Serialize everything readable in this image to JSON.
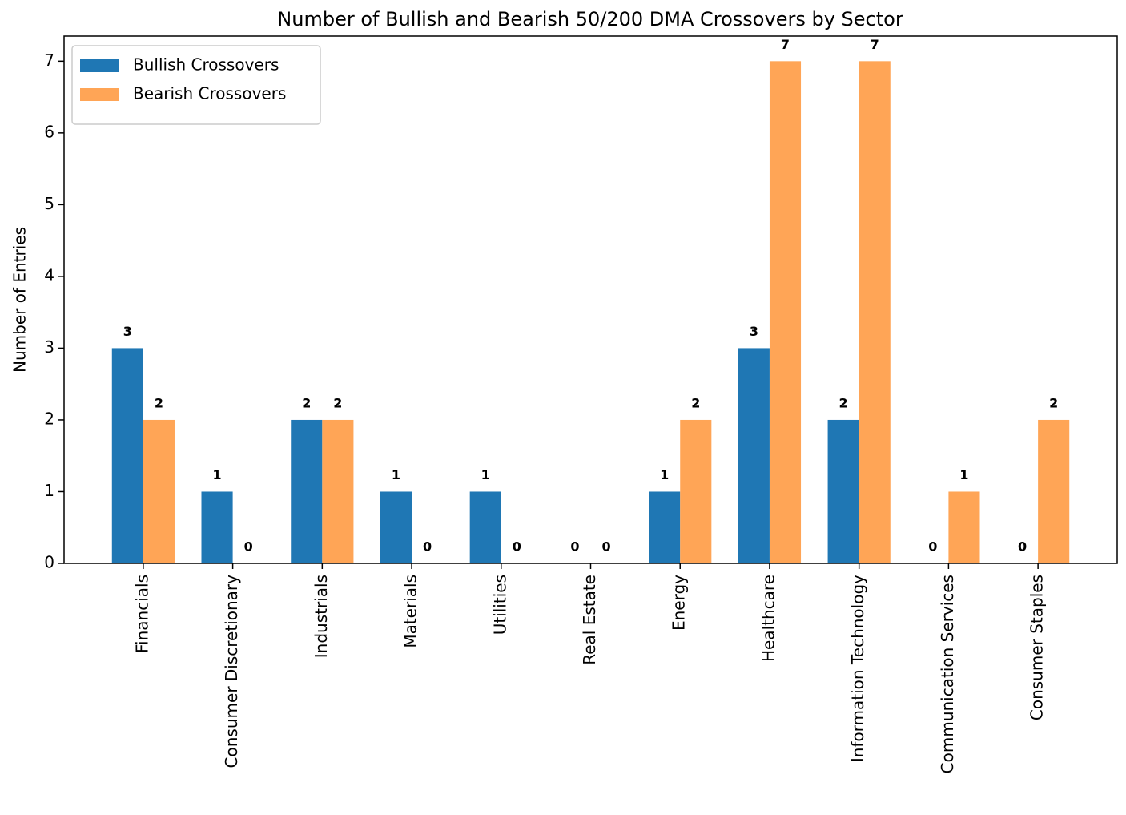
{
  "chart_data": {
    "type": "bar",
    "title": "Number of Bullish and Bearish 50/200 DMA Crossovers by Sector",
    "y_label": "Number of Entries",
    "categories": [
      "Financials",
      "Consumer Discretionary",
      "Industrials",
      "Materials",
      "Utilities",
      "Real Estate",
      "Energy",
      "Healthcare",
      "Information Technology",
      "Communication Services",
      "Consumer Staples"
    ],
    "series": [
      {
        "name": "Bullish Crossovers",
        "color": "#1f77b4",
        "values": [
          3,
          1,
          2,
          1,
          1,
          0,
          1,
          3,
          2,
          0,
          0
        ]
      },
      {
        "name": "Bearish Crossovers",
        "color": "#ffa556",
        "values": [
          2,
          0,
          2,
          0,
          0,
          0,
          2,
          7,
          7,
          1,
          2
        ]
      }
    ],
    "ylim": [
      0,
      7.35
    ],
    "yticks": [
      0,
      1,
      2,
      3,
      4,
      5,
      6,
      7
    ],
    "grid": false,
    "legend": "upper-left"
  }
}
